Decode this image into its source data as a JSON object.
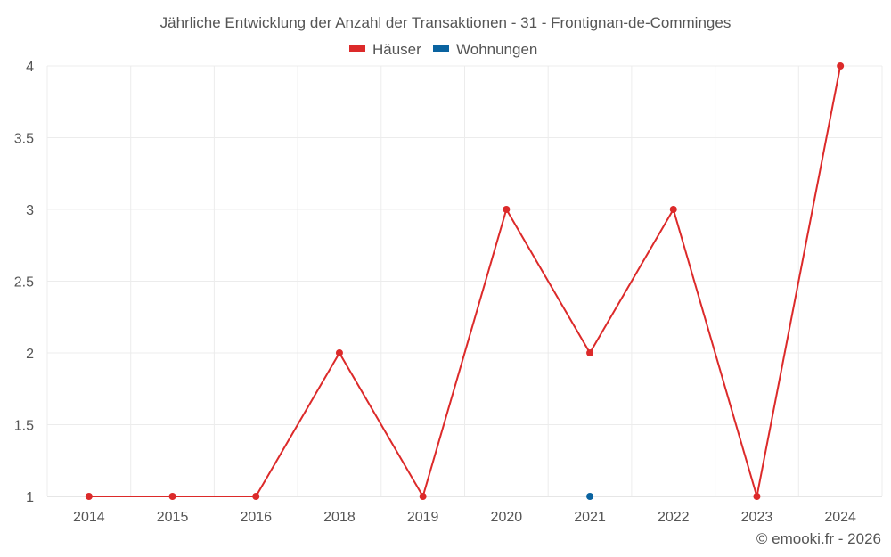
{
  "chart_data": {
    "type": "line",
    "title": "Jährliche Entwicklung der Anzahl der Transaktionen - 31 - Frontignan-de-Comminges",
    "categories": [
      "2014",
      "2015",
      "2016",
      "2018",
      "2019",
      "2020",
      "2021",
      "2022",
      "2023",
      "2024"
    ],
    "series": [
      {
        "name": "Häuser",
        "color": "#dc2a2a",
        "values": [
          1,
          1,
          1,
          2,
          1,
          3,
          2,
          3,
          1,
          4
        ]
      },
      {
        "name": "Wohnungen",
        "color": "#0a63a0",
        "values": [
          null,
          null,
          null,
          null,
          null,
          null,
          1,
          null,
          null,
          null
        ]
      }
    ],
    "ylim": [
      1,
      4
    ],
    "yticks": [
      1,
      1.5,
      2,
      2.5,
      3,
      3.5,
      4
    ],
    "ytick_labels": [
      "1",
      "1.5",
      "2",
      "2.5",
      "3",
      "3.5",
      "4"
    ],
    "xlabel": "",
    "ylabel": "",
    "grid": true,
    "legend": "top-center"
  },
  "credit": "© emooki.fr - 2026"
}
